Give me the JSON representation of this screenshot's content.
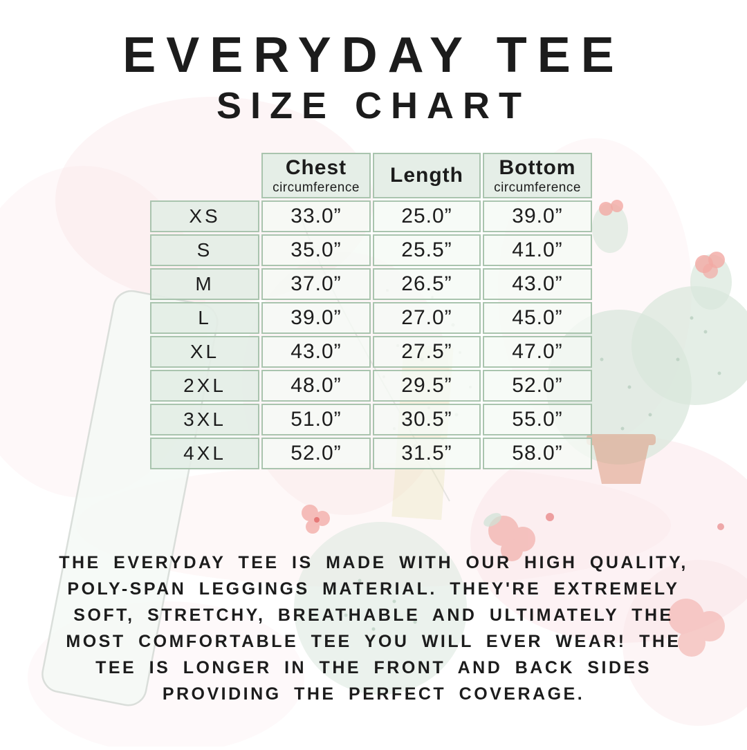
{
  "page": {
    "title_line1": "EVERYDAY TEE",
    "title_line2": "SIZE CHART",
    "description": "THE EVERYDAY TEE IS MADE WITH OUR HIGH QUALITY, POLY-SPAN LEGGINGS MATERIAL. THEY'RE EXTREMELY SOFT, STRETCHY, BREATHABLE AND ULTIMATELY THE MOST COMFORTABLE TEE YOU WILL EVER WEAR! THE TEE IS LONGER IN THE FRONT AND BACK SIDES PROVIDING THE PERFECT COVERAGE."
  },
  "chart_data": {
    "type": "table",
    "title": "EVERYDAY TEE SIZE CHART",
    "units": "inches",
    "columns": [
      {
        "label": "",
        "sublabel": ""
      },
      {
        "label": "Chest",
        "sublabel": "circumference"
      },
      {
        "label": "Length",
        "sublabel": ""
      },
      {
        "label": "Bottom",
        "sublabel": "circumference"
      }
    ],
    "rows": [
      [
        "XS",
        "33.0”",
        "25.0”",
        "39.0”"
      ],
      [
        "S",
        "35.0”",
        "25.5”",
        "41.0”"
      ],
      [
        "M",
        "37.0”",
        "26.5”",
        "43.0”"
      ],
      [
        "L",
        "39.0”",
        "27.0”",
        "45.0”"
      ],
      [
        "XL",
        "43.0”",
        "27.5”",
        "47.0”"
      ],
      [
        "2XL",
        "48.0”",
        "29.5”",
        "52.0”"
      ],
      [
        "3XL",
        "51.0”",
        "30.5”",
        "55.0”"
      ],
      [
        "4XL",
        "52.0”",
        "31.5”",
        "58.0”"
      ]
    ]
  },
  "colors": {
    "text": "#1c1c1c",
    "cell_border": "#a9c4ae",
    "header_fill": "#e4ede5",
    "data_fill": "#f5faf5",
    "cactus_green": "#d9e7dc",
    "flower_pink": "#f2a9a4",
    "pot_terracotta": "#dd9b80",
    "wash_pink": "#f9dee1"
  }
}
